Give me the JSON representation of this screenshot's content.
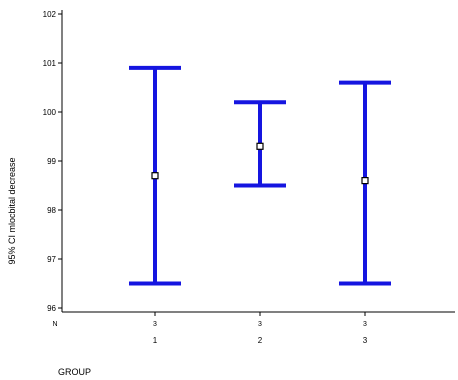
{
  "chart_data": {
    "type": "errorbar",
    "title": "",
    "xlabel": "GROUP",
    "ylabel": "95% CI mlocbital decrease",
    "n_row_label": "N",
    "categories": [
      "1",
      "2",
      "3"
    ],
    "n_values": [
      "3",
      "3",
      "3"
    ],
    "yticks": [
      "96",
      "97",
      "98",
      "99",
      "100",
      "101",
      "102"
    ],
    "ylim": [
      96,
      102
    ],
    "grid": false,
    "series": [
      {
        "color": "#1515e0",
        "points": [
          {
            "category": "1",
            "mean": 98.7,
            "lower": 96.5,
            "upper": 100.9
          },
          {
            "category": "2",
            "mean": 99.3,
            "lower": 98.5,
            "upper": 100.2
          },
          {
            "category": "3",
            "mean": 98.6,
            "lower": 96.5,
            "upper": 100.6
          }
        ]
      }
    ]
  }
}
